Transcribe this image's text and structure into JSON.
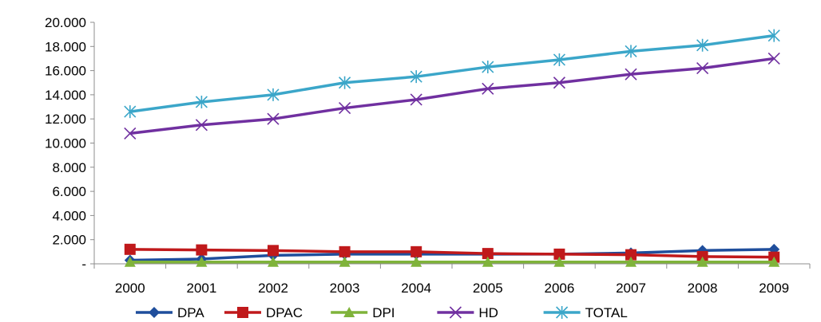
{
  "chart_data": {
    "type": "line",
    "title": "",
    "xlabel": "",
    "ylabel": "",
    "x": [
      "2000",
      "2001",
      "2002",
      "2003",
      "2004",
      "2005",
      "2006",
      "2007",
      "2008",
      "2009"
    ],
    "ylim": [
      0,
      20000
    ],
    "yticks": [
      0,
      2000,
      4000,
      6000,
      8000,
      10000,
      12000,
      14000,
      16000,
      18000,
      20000
    ],
    "ytick_labels": [
      "-",
      "2.000",
      "4.000",
      "6.000",
      "8.000",
      "10.000",
      "12.000",
      "14.000",
      "16.000",
      "18.000",
      "20.000"
    ],
    "grid": false,
    "legend_position": "bottom",
    "series": [
      {
        "name": "DPA",
        "color": "#1f4e9c",
        "marker": "diamond",
        "values": [
          300,
          400,
          700,
          800,
          800,
          800,
          800,
          900,
          1100,
          1200
        ]
      },
      {
        "name": "DPAC",
        "color": "#c0191b",
        "marker": "square",
        "values": [
          1200,
          1150,
          1100,
          1000,
          1000,
          850,
          800,
          750,
          600,
          550
        ]
      },
      {
        "name": "DPI",
        "color": "#7fb33a",
        "marker": "triangle",
        "values": [
          150,
          150,
          150,
          150,
          150,
          150,
          150,
          150,
          150,
          150
        ]
      },
      {
        "name": "HD",
        "color": "#7030a0",
        "marker": "x",
        "values": [
          10800,
          11500,
          12000,
          12900,
          13600,
          14500,
          15000,
          15700,
          16200,
          17000
        ]
      },
      {
        "name": "TOTAL",
        "color": "#3ba6c9",
        "marker": "star",
        "values": [
          12600,
          13400,
          14000,
          15000,
          15500,
          16300,
          16900,
          17600,
          18100,
          18900
        ]
      }
    ]
  }
}
